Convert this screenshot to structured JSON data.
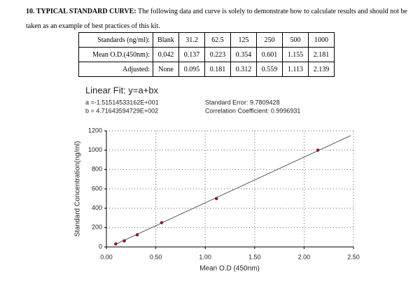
{
  "heading": {
    "label": "10. TYPICAL STANDARD CURVE:",
    "text": "The following data and curve is solely to demonstrate how to calculate results and should not be taken as an example of best practices of this kit."
  },
  "table": {
    "rows": [
      [
        "Standards (ng/ml):",
        "Blank",
        "31.2",
        "62.5",
        "125",
        "250",
        "500",
        "1000"
      ],
      [
        "Mean O.D.(450nm):",
        "0.042",
        "0.137",
        "0.223",
        "0.354",
        "0.601",
        "1.155",
        "2.181"
      ],
      [
        "Adjusted:",
        "None",
        "0.095",
        "0.181",
        "0.312",
        "0.559",
        "1.113",
        "2.139"
      ]
    ]
  },
  "fit": {
    "title": "Linear Fit: y=a+bx",
    "a": "a =-1.51514533162E+001",
    "b": "b = 4.71643594729E+002",
    "std_error": "Standard Error: 9.7809428",
    "correlation": "Correlation Coefficient: 0.9996931"
  },
  "chart_data": {
    "type": "scatter",
    "x_label": "Mean O.D (450nm)",
    "y_label": "Standard Concentration(ng/ml)",
    "points": {
      "x": [
        0.095,
        0.181,
        0.312,
        0.559,
        1.113,
        2.139
      ],
      "y": [
        31.2,
        62.5,
        125,
        250,
        500,
        1000
      ],
      "color": "#8b1a2a"
    },
    "fit_line": {
      "x": [
        0.08,
        2.47
      ],
      "y": [
        22,
        1150
      ],
      "color": "#333333"
    },
    "xlim": [
      0,
      2.5
    ],
    "ylim": [
      0,
      1200
    ],
    "xticks": [
      {
        "value": 0,
        "label": "0.00"
      },
      {
        "value": 0.5,
        "label": "0.50"
      },
      {
        "value": 1,
        "label": "1.00"
      },
      {
        "value": 1.5,
        "label": "1.50"
      },
      {
        "value": 2,
        "label": "2.00"
      },
      {
        "value": 2.5,
        "label": "2.50"
      }
    ],
    "yticks": [
      0,
      200,
      400,
      600,
      800,
      1000,
      1200
    ],
    "grid": true
  }
}
